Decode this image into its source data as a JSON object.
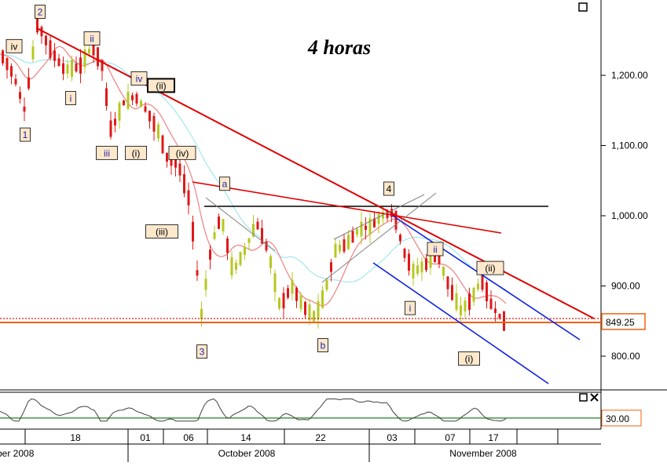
{
  "chart_data": {
    "type": "candlestick",
    "title": "4 horas",
    "price_axis": {
      "ticks": [
        "1,200.00",
        "1,100.00",
        "1,000.00",
        "900.00",
        "800.00"
      ],
      "tick_values": [
        1200,
        1100,
        1000,
        900,
        800
      ],
      "range": [
        745,
        1310
      ]
    },
    "last_price": {
      "value": 849.25,
      "label": "849.25"
    },
    "rsi_axis": {
      "ticks": [
        "30.00"
      ],
      "tick_values": [
        30
      ],
      "range": [
        0,
        100
      ]
    },
    "x_axis": {
      "day_ticks": [
        "18",
        "01",
        "06",
        "14",
        "22",
        "03",
        "07",
        "17"
      ],
      "month_labels": [
        "ber 2008",
        "October 2008",
        "November 2008"
      ]
    },
    "wave_labels": [
      {
        "text": "2",
        "price": 1290,
        "color": "#2222aa"
      },
      {
        "text": "iv",
        "price": 1241,
        "color": "#000000"
      },
      {
        "text": "ii",
        "price": 1252,
        "color": "#2222aa"
      },
      {
        "text": "i",
        "price": 1167,
        "color": "#2222aa"
      },
      {
        "text": "iv",
        "price": 1195,
        "color": "#2222aa"
      },
      {
        "text": "(ii)",
        "price": 1185,
        "color": "#000000"
      },
      {
        "text": "1",
        "price": 1115,
        "color": "#2222aa"
      },
      {
        "text": "iii",
        "price": 1089,
        "color": "#2222aa"
      },
      {
        "text": "(i)",
        "price": 1089,
        "color": "#000000"
      },
      {
        "text": "(iv)",
        "price": 1089,
        "color": "#000000"
      },
      {
        "text": "a",
        "price": 1045,
        "color": "#2222aa"
      },
      {
        "text": "4",
        "price": 1038,
        "color": "#000000"
      },
      {
        "text": "(iii)",
        "price": 977,
        "color": "#000000"
      },
      {
        "text": "ii",
        "price": 952,
        "color": "#2222aa"
      },
      {
        "text": "(ii)",
        "price": 925,
        "color": "#000000"
      },
      {
        "text": "i",
        "price": 868,
        "color": "#2222aa"
      },
      {
        "text": "3",
        "price": 806,
        "color": "#2222aa"
      },
      {
        "text": "b",
        "price": 815,
        "color": "#2222aa"
      },
      {
        "text": "(i)",
        "price": 796,
        "color": "#000000"
      }
    ],
    "colors": {
      "up": "#b5c820",
      "down": "#e01818",
      "trend_red": "#e00000",
      "channel_blue": "#1020e0",
      "ma_cyan": "#a0e8f0",
      "ma_red": "#f08080",
      "support_orange": "#f06010",
      "resistance_black": "#000000",
      "rsi_line": "#404040",
      "rsi_level": "#208020",
      "label_bg": "#fde8cc"
    }
  }
}
